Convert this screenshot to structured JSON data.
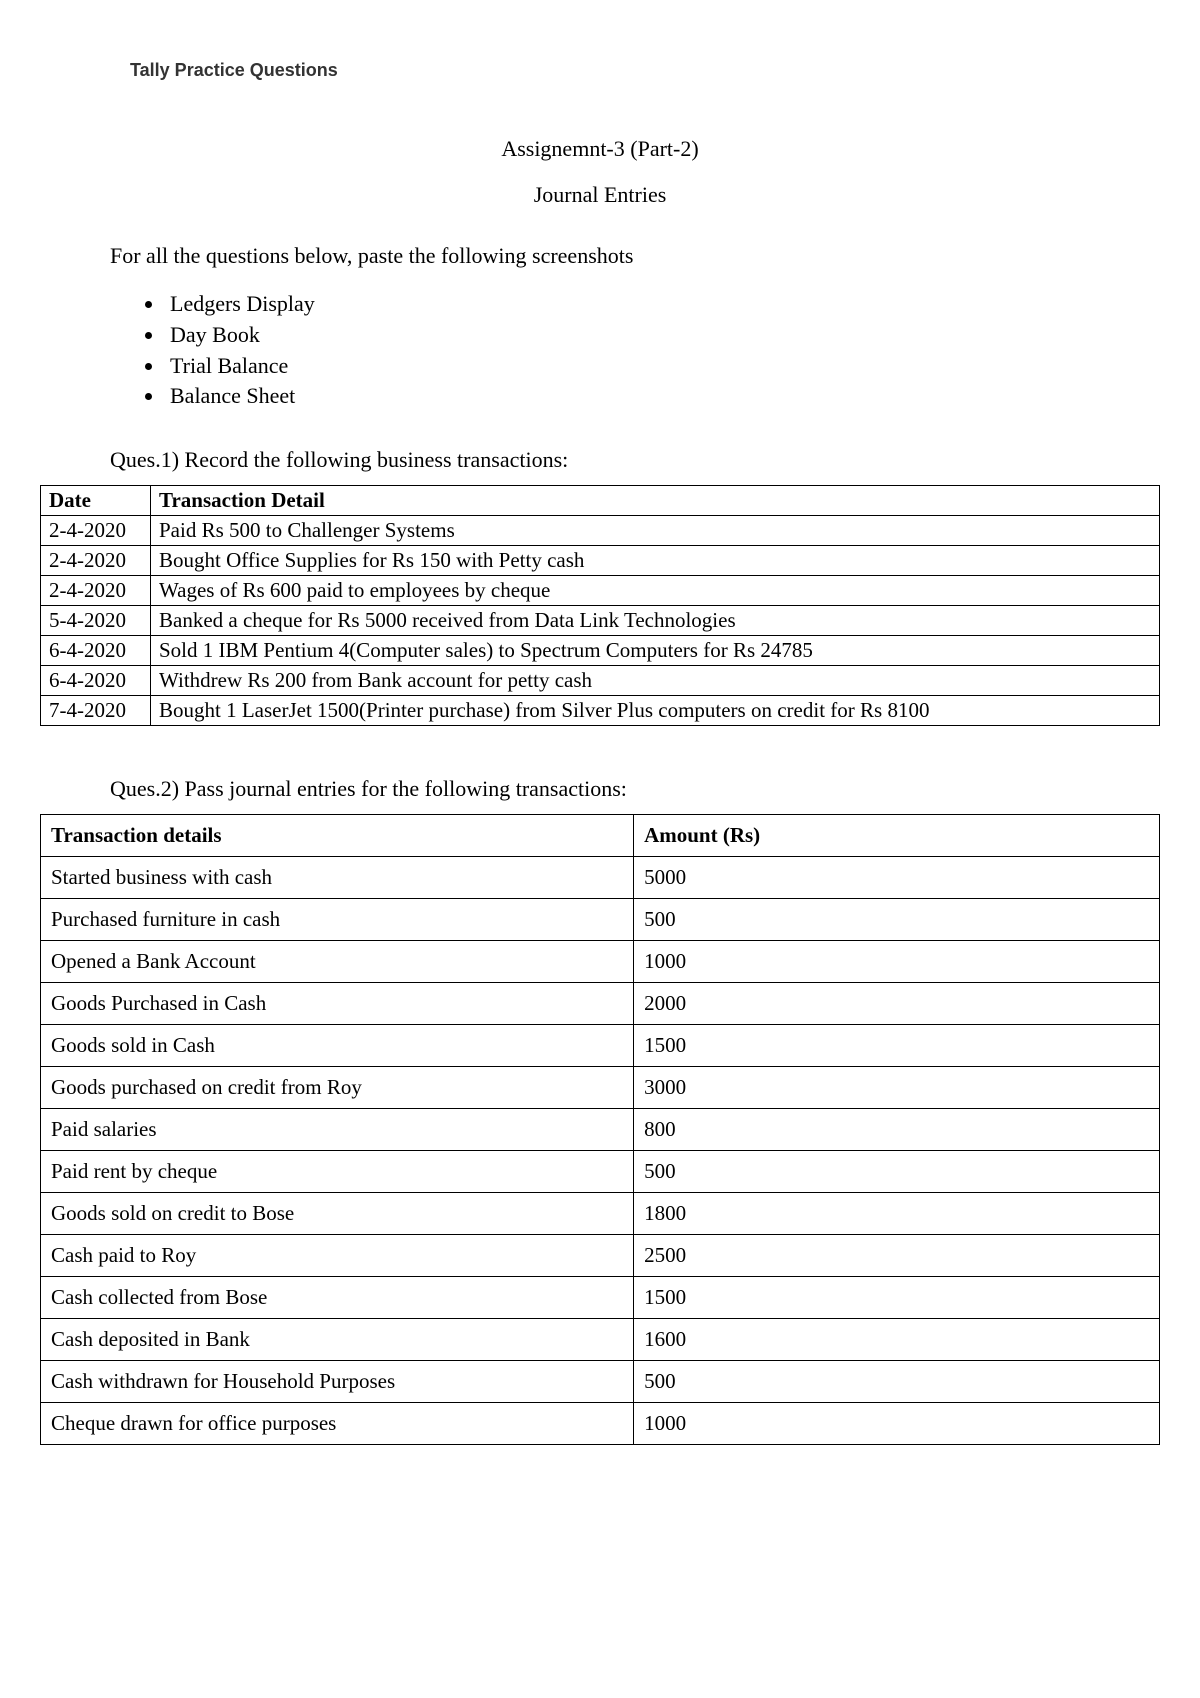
{
  "header": {
    "title": "Tally Practice Questions"
  },
  "assignment_title": "Assignemnt-3 (Part-2)",
  "assignment_subtitle": "Journal Entries",
  "intro": "For all the questions below, paste the following screenshots",
  "bullets": [
    "Ledgers Display",
    "Day Book",
    "Trial Balance",
    "Balance Sheet"
  ],
  "question1": {
    "text": "Ques.1) Record the following business transactions:",
    "table": {
      "headers": [
        "Date",
        "Transaction Detail"
      ],
      "rows": [
        [
          "2-4-2020",
          "Paid Rs 500 to Challenger Systems"
        ],
        [
          "2-4-2020",
          "Bought Office Supplies for Rs 150 with Petty cash"
        ],
        [
          "2-4-2020",
          "Wages of Rs 600 paid to employees by cheque"
        ],
        [
          "5-4-2020",
          "Banked a cheque for Rs 5000 received from Data Link Technologies"
        ],
        [
          "6-4-2020",
          "Sold 1 IBM Pentium 4(Computer sales) to Spectrum Computers for Rs 24785"
        ],
        [
          "6-4-2020",
          "Withdrew Rs 200 from Bank account for petty cash"
        ],
        [
          "7-4-2020",
          "Bought 1 LaserJet 1500(Printer purchase) from Silver Plus computers on credit for Rs 8100"
        ]
      ]
    }
  },
  "question2": {
    "text": "Ques.2) Pass journal entries for the following transactions:",
    "table": {
      "headers": [
        "Transaction details",
        "Amount (Rs)"
      ],
      "rows": [
        [
          "Started business with cash",
          "5000"
        ],
        [
          "Purchased furniture in cash",
          "500"
        ],
        [
          "Opened a Bank Account",
          "1000"
        ],
        [
          "Goods Purchased in Cash",
          "2000"
        ],
        [
          "Goods sold in Cash",
          "1500"
        ],
        [
          "Goods purchased on credit from Roy",
          "3000"
        ],
        [
          "Paid salaries",
          "800"
        ],
        [
          "Paid rent by cheque",
          "500"
        ],
        [
          "Goods sold on credit to Bose",
          "1800"
        ],
        [
          "Cash paid to Roy",
          "2500"
        ],
        [
          "Cash collected from Bose",
          "1500"
        ],
        [
          "Cash deposited in Bank",
          "1600"
        ],
        [
          "Cash withdrawn for Household Purposes",
          "500"
        ],
        [
          "Cheque drawn for office purposes",
          "1000"
        ]
      ]
    }
  }
}
